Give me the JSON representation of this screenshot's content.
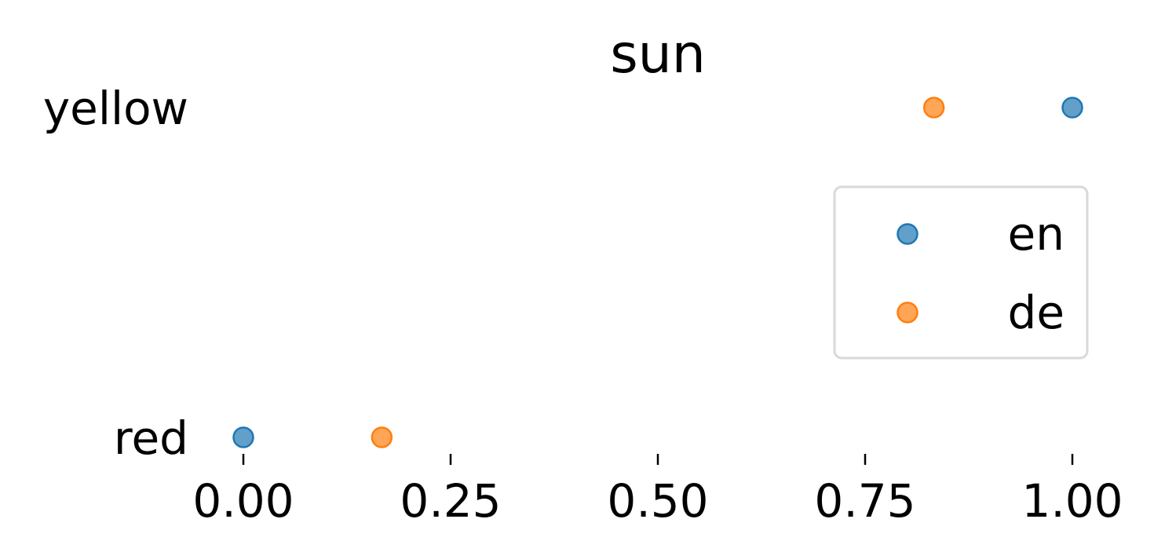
{
  "chart_data": {
    "type": "scatter",
    "title": "sun",
    "xlabel": "",
    "ylabel": "",
    "xlim": [
      0,
      1
    ],
    "xticks": [
      "0.00",
      "0.25",
      "0.50",
      "0.75",
      "1.00"
    ],
    "categories": [
      "yellow",
      "red"
    ],
    "grid": false,
    "legend_position": "right",
    "series": [
      {
        "name": "en",
        "color": "#1f77b4",
        "points": [
          {
            "category": "yellow",
            "x": 1.0
          },
          {
            "category": "red",
            "x": 0.0
          }
        ]
      },
      {
        "name": "de",
        "color": "#ff7f0e",
        "points": [
          {
            "category": "yellow",
            "x": 0.833
          },
          {
            "category": "red",
            "x": 0.167
          }
        ]
      }
    ]
  }
}
